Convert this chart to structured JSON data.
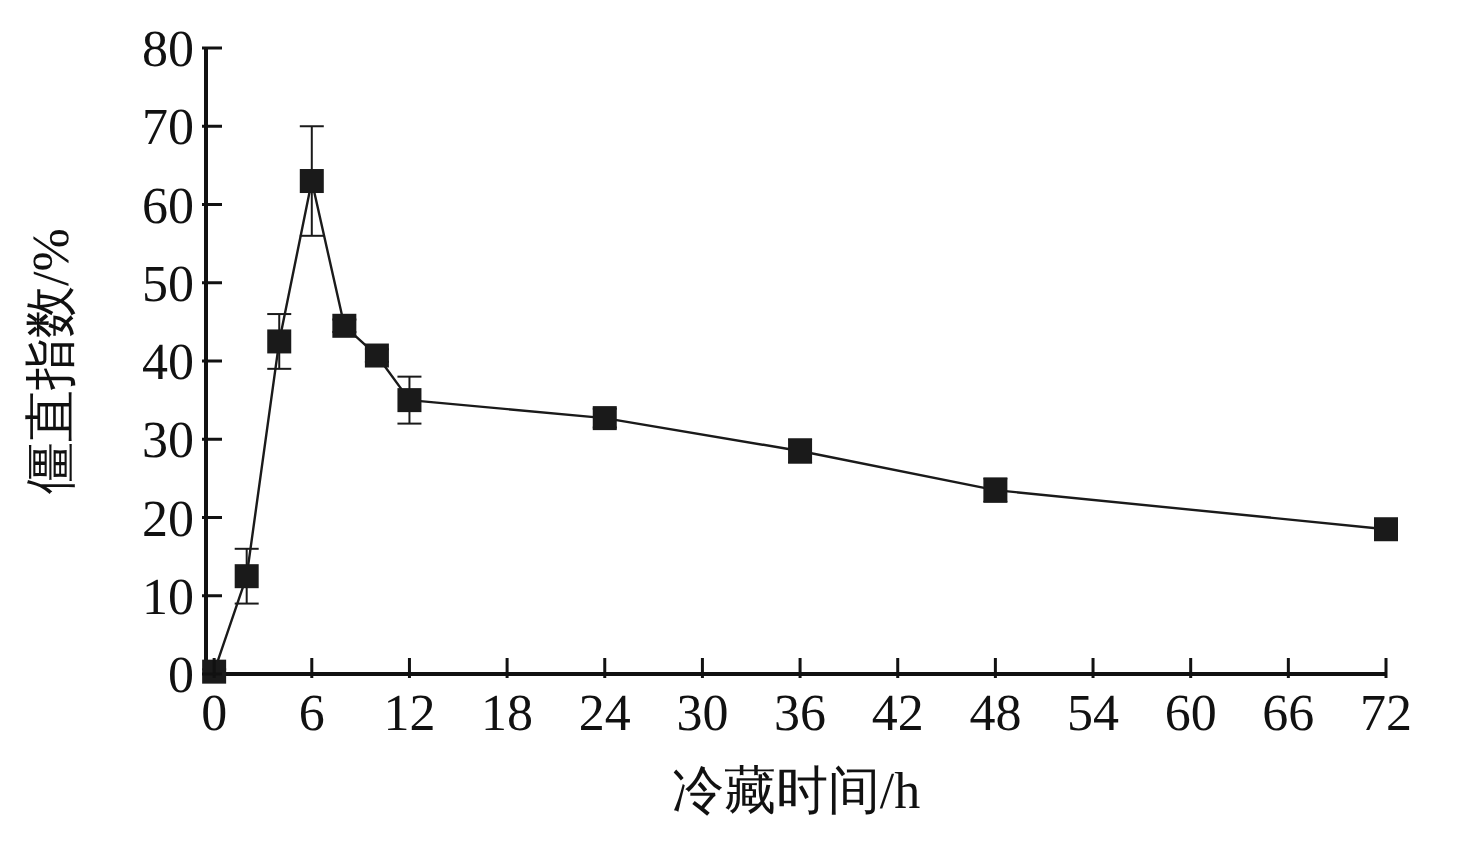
{
  "chart_data": {
    "type": "line",
    "xlabel": "冷藏时间/h",
    "ylabel": "僵直指数/%",
    "x": [
      0,
      2,
      4,
      6,
      8,
      10,
      12,
      24,
      36,
      48,
      72
    ],
    "series": [
      {
        "color": "#1a1a1a",
        "values": [
          0.3,
          12.5,
          42.5,
          63,
          44.5,
          40.7,
          35,
          32.7,
          28.5,
          23.5,
          18.5
        ],
        "errors": [
          0.3,
          3.5,
          3.5,
          7,
          0.8,
          0.8,
          3,
          1.2,
          1.5,
          1.5,
          1
        ]
      }
    ],
    "xlim": [
      -0.5,
      72
    ],
    "xticks": [
      0,
      6,
      12,
      18,
      24,
      30,
      36,
      42,
      48,
      54,
      60,
      66,
      72
    ],
    "ylim": [
      0,
      80
    ],
    "yticks": [
      0,
      10,
      20,
      30,
      40,
      50,
      60,
      70,
      80
    ],
    "grid": false,
    "legend": false,
    "marker": "square",
    "line_style": "solid"
  }
}
